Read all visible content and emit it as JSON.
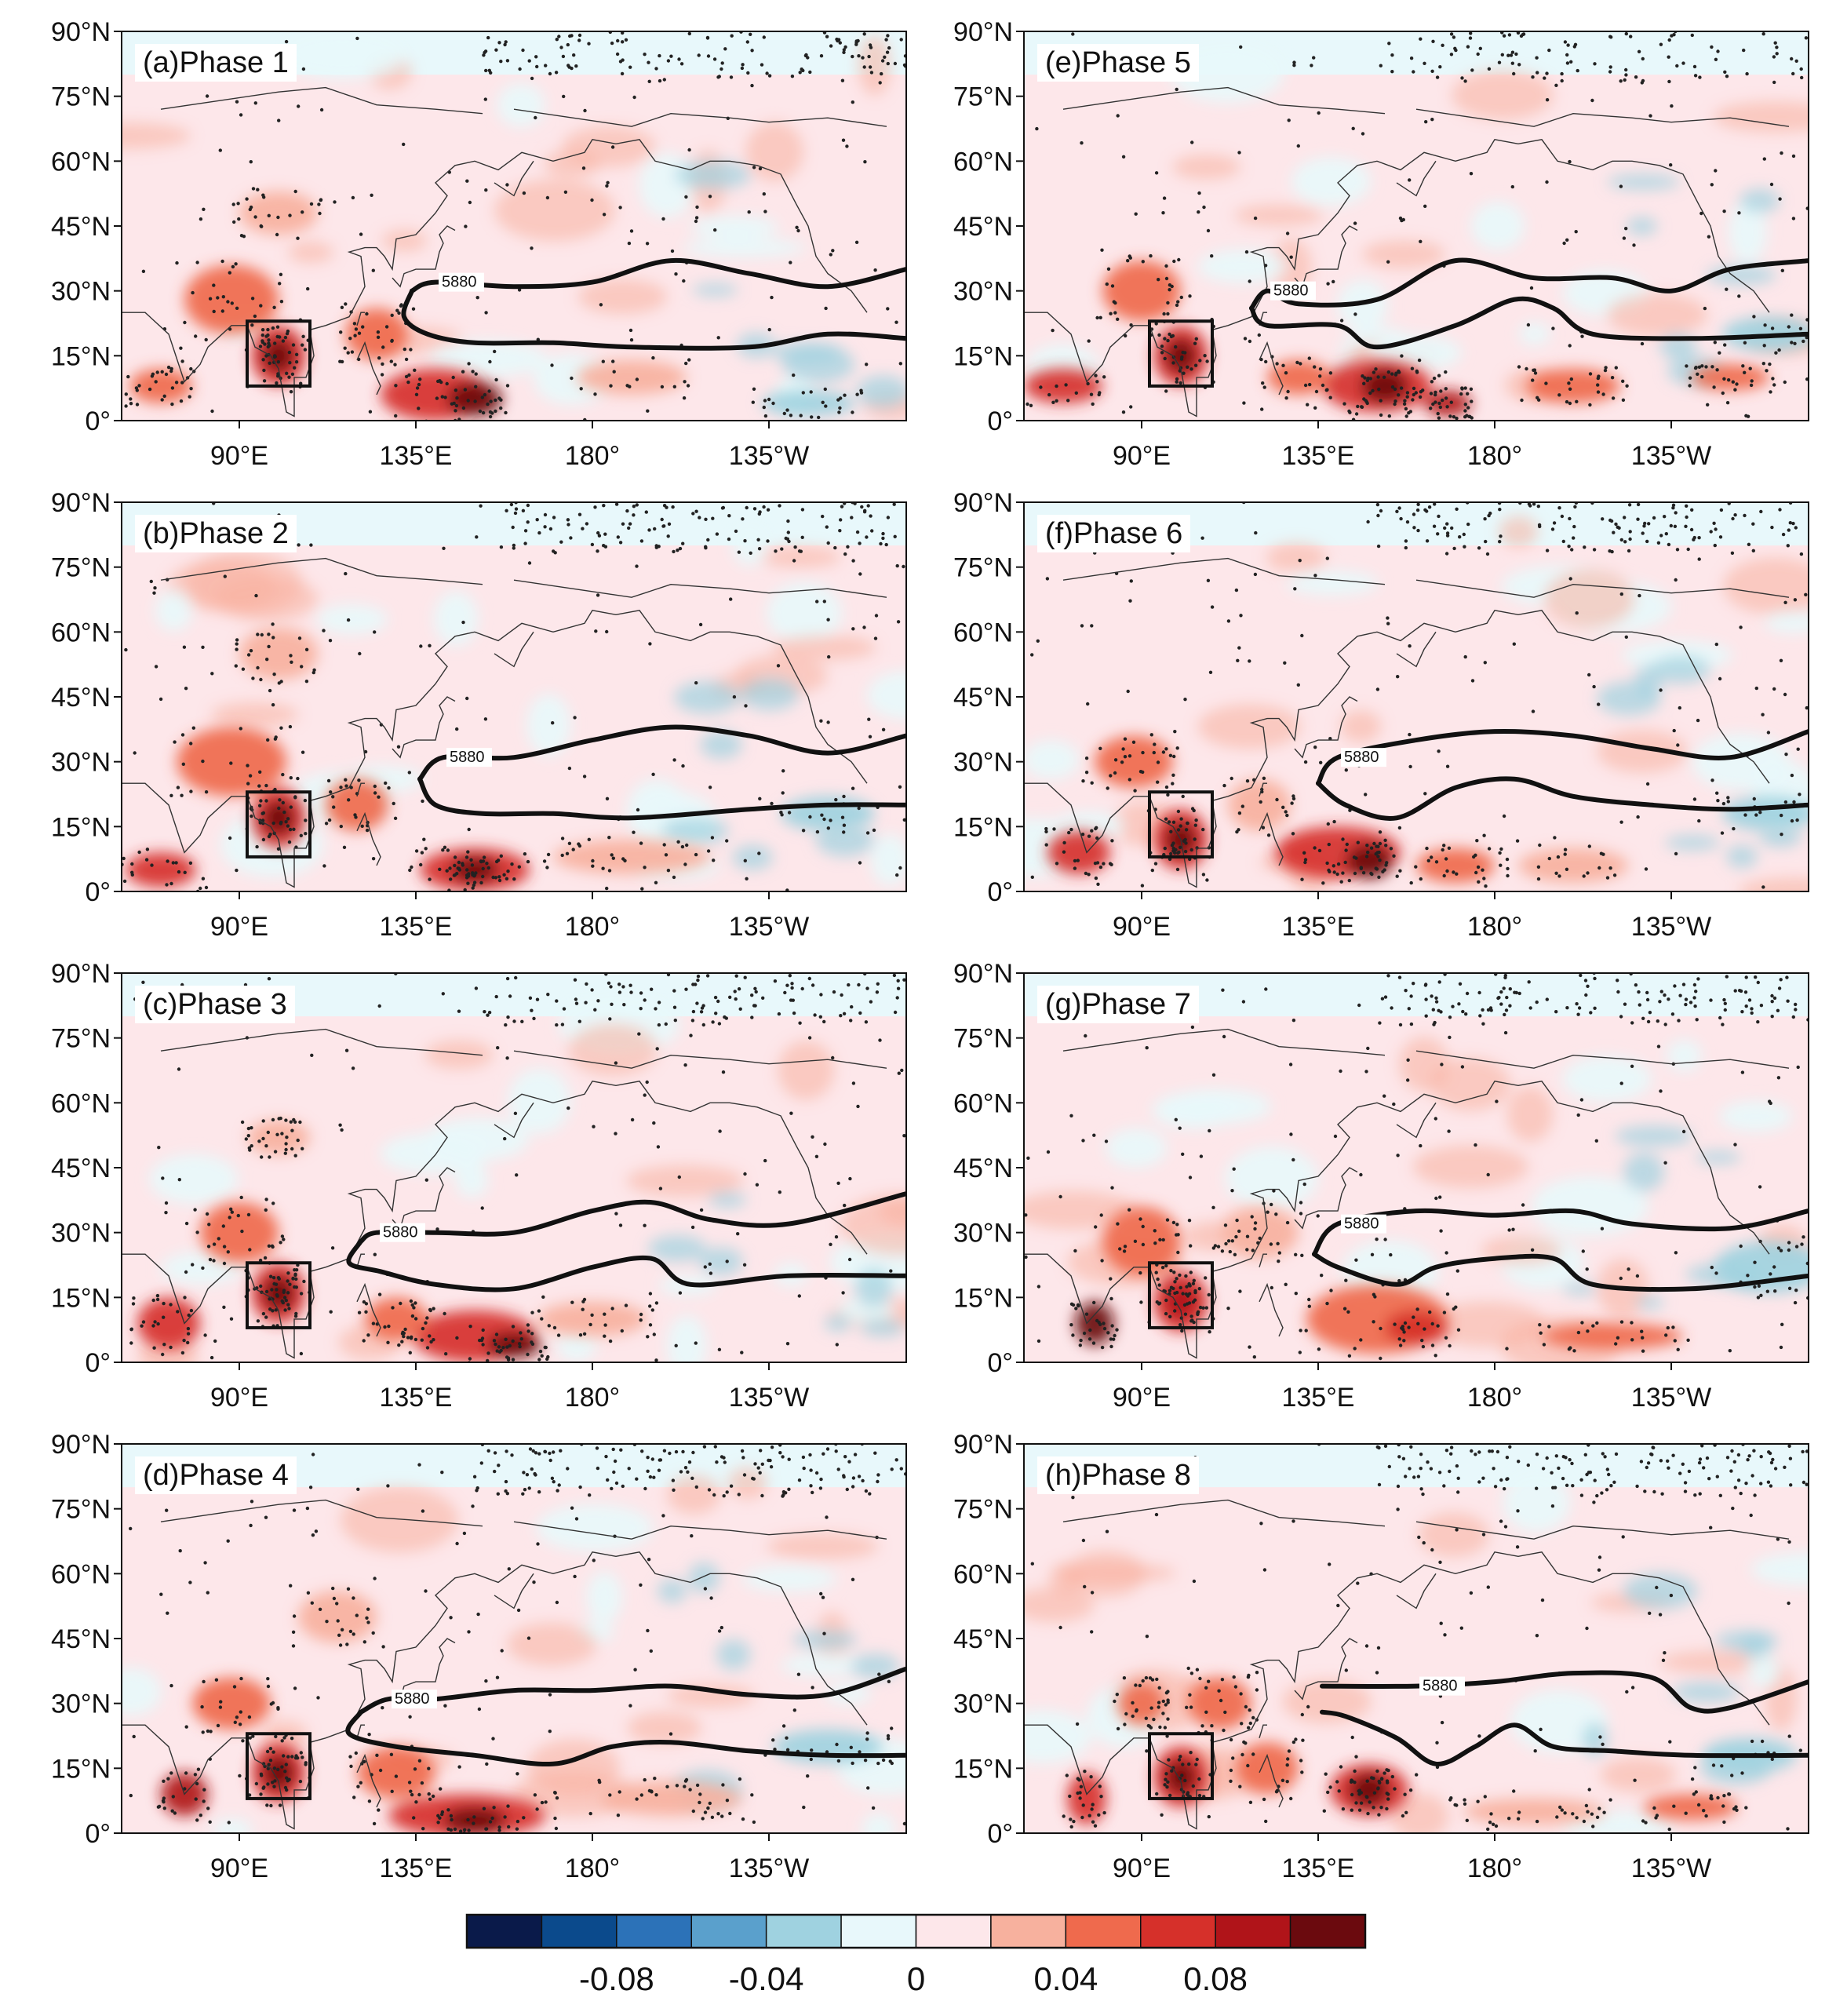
{
  "figure": {
    "latitude_tick_labels": [
      "90°N",
      "75°N",
      "60°N",
      "45°N",
      "30°N",
      "15°N",
      "0°"
    ],
    "longitude_tick_labels": [
      "90°E",
      "135°E",
      "180°",
      "135°W"
    ],
    "contour_label": "5880",
    "panels": [
      {
        "id": "a",
        "title": "(a)Phase 1"
      },
      {
        "id": "b",
        "title": "(b)Phase 2"
      },
      {
        "id": "c",
        "title": "(c)Phase 3"
      },
      {
        "id": "d",
        "title": "(d)Phase 4"
      },
      {
        "id": "e",
        "title": "(e)Phase 5"
      },
      {
        "id": "f",
        "title": "(f)Phase 6"
      },
      {
        "id": "g",
        "title": "(g)Phase 7"
      },
      {
        "id": "h",
        "title": "(h)Phase 8"
      }
    ],
    "colorbar": {
      "colors": [
        "#0a1a4a",
        "#0b4a8c",
        "#2c72b8",
        "#5aa0cc",
        "#9fd2e0",
        "#e8f8fb",
        "#fde7ea",
        "#f7b19e",
        "#ef6a4d",
        "#d6302a",
        "#b01419",
        "#6b0a0e"
      ],
      "labels": [
        "-0.08",
        "-0.04",
        "0",
        "0.04",
        "0.08"
      ]
    }
  }
}
